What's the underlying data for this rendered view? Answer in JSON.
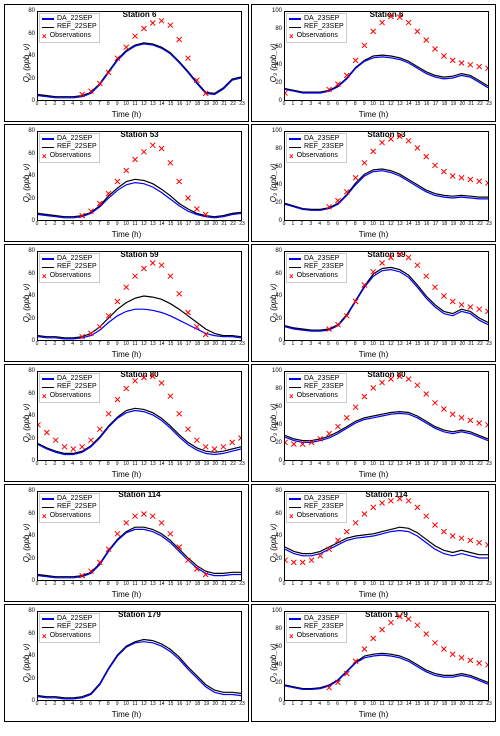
{
  "global": {
    "xlabel": "Time (h)",
    "ylabel": "O₃ (ppb_v)",
    "x": [
      0,
      1,
      2,
      3,
      4,
      5,
      6,
      7,
      8,
      9,
      10,
      11,
      12,
      13,
      14,
      15,
      16,
      17,
      18,
      19,
      20,
      21,
      22,
      23
    ],
    "colors": {
      "da": "#0000ff",
      "ref": "#000000",
      "obs": "#ff0000",
      "grid": "#cccccc",
      "bg": "#ffffff"
    },
    "line_width": 1.2,
    "marker": "x",
    "marker_size": 5,
    "font_size": 8
  },
  "panels": [
    {
      "title": "Station 6",
      "da_lbl": "DA_22SEP",
      "ref_lbl": "REF_22SEP",
      "ylim": [
        0,
        80
      ],
      "ystep": 20,
      "da": [
        4,
        3,
        2,
        2,
        2,
        3,
        6,
        14,
        25,
        36,
        44,
        49,
        51,
        50,
        47,
        42,
        34,
        25,
        15,
        6,
        5,
        10,
        18,
        20
      ],
      "ref": [
        5,
        4,
        3,
        3,
        3,
        4,
        7,
        15,
        26,
        37,
        45,
        50,
        52,
        51,
        48,
        43,
        35,
        26,
        16,
        7,
        6,
        11,
        19,
        21
      ],
      "obs": [
        null,
        null,
        null,
        null,
        null,
        5,
        8,
        15,
        25,
        38,
        48,
        58,
        65,
        70,
        72,
        68,
        55,
        38,
        18,
        6,
        null,
        null,
        null,
        null
      ]
    },
    {
      "title": "Station 6",
      "da_lbl": "DA_23SEP",
      "ref_lbl": "REF_23SEP",
      "ylim": [
        0,
        100
      ],
      "ystep": 20,
      "da": [
        12,
        10,
        8,
        8,
        8,
        10,
        15,
        24,
        36,
        44,
        48,
        49,
        48,
        46,
        42,
        36,
        30,
        26,
        24,
        25,
        28,
        26,
        20,
        14
      ],
      "ref": [
        13,
        11,
        9,
        9,
        9,
        11,
        16,
        25,
        37,
        45,
        50,
        51,
        50,
        48,
        44,
        38,
        32,
        28,
        26,
        27,
        30,
        28,
        22,
        16
      ],
      "obs": [
        8,
        null,
        null,
        null,
        null,
        12,
        18,
        28,
        45,
        62,
        78,
        88,
        95,
        94,
        88,
        78,
        68,
        58,
        50,
        45,
        42,
        40,
        38,
        36
      ]
    },
    {
      "title": "Station 53",
      "da_lbl": "DA_22SEP",
      "ref_lbl": "REF_22SEP",
      "ylim": [
        0,
        80
      ],
      "ystep": 20,
      "da": [
        5,
        4,
        3,
        2,
        2,
        3,
        6,
        12,
        20,
        27,
        32,
        34,
        33,
        30,
        25,
        19,
        13,
        8,
        5,
        3,
        2,
        3,
        5,
        6
      ],
      "ref": [
        6,
        5,
        4,
        3,
        3,
        4,
        7,
        13,
        22,
        29,
        35,
        37,
        36,
        33,
        28,
        22,
        15,
        10,
        6,
        4,
        3,
        4,
        6,
        7
      ],
      "obs": [
        null,
        null,
        null,
        null,
        null,
        4,
        8,
        15,
        24,
        35,
        45,
        55,
        62,
        68,
        65,
        52,
        35,
        20,
        10,
        5,
        null,
        null,
        null,
        null
      ]
    },
    {
      "title": "Station 53",
      "da_lbl": "DA_23SEP",
      "ref_lbl": "REF_23SEP",
      "ylim": [
        0,
        100
      ],
      "ystep": 20,
      "da": [
        18,
        15,
        12,
        11,
        11,
        13,
        18,
        28,
        40,
        50,
        55,
        56,
        54,
        50,
        44,
        38,
        32,
        28,
        26,
        25,
        26,
        25,
        24,
        24
      ],
      "ref": [
        19,
        16,
        13,
        12,
        12,
        14,
        19,
        29,
        42,
        52,
        57,
        58,
        56,
        52,
        46,
        40,
        34,
        30,
        28,
        27,
        28,
        27,
        26,
        26
      ],
      "obs": [
        null,
        null,
        null,
        null,
        null,
        15,
        22,
        32,
        48,
        65,
        78,
        88,
        92,
        95,
        90,
        82,
        72,
        62,
        55,
        50,
        48,
        46,
        44,
        42
      ]
    },
    {
      "title": "Station 59",
      "da_lbl": "DA_22SEP",
      "ref_lbl": "REF_22SEP",
      "ylim": [
        0,
        80
      ],
      "ystep": 20,
      "da": [
        3,
        2,
        2,
        1,
        1,
        2,
        4,
        9,
        16,
        22,
        26,
        28,
        28,
        27,
        25,
        22,
        18,
        14,
        10,
        6,
        4,
        3,
        3,
        2
      ],
      "ref": [
        4,
        3,
        3,
        2,
        2,
        3,
        6,
        12,
        20,
        28,
        34,
        38,
        40,
        39,
        37,
        33,
        28,
        22,
        16,
        10,
        6,
        4,
        4,
        3
      ],
      "obs": [
        null,
        null,
        null,
        null,
        null,
        3,
        6,
        12,
        22,
        35,
        48,
        58,
        65,
        70,
        68,
        58,
        42,
        25,
        12,
        5,
        null,
        null,
        null,
        null
      ]
    },
    {
      "title": "Station 59",
      "da_lbl": "DA_23SEP",
      "ref_lbl": "REF_23SEP",
      "ylim": [
        0,
        80
      ],
      "ystep": 20,
      "da": [
        12,
        10,
        9,
        8,
        8,
        9,
        13,
        22,
        35,
        48,
        58,
        63,
        64,
        62,
        57,
        48,
        38,
        30,
        24,
        22,
        26,
        24,
        18,
        14
      ],
      "ref": [
        13,
        11,
        10,
        9,
        9,
        10,
        14,
        23,
        36,
        49,
        60,
        65,
        66,
        64,
        59,
        50,
        40,
        32,
        26,
        24,
        28,
        26,
        20,
        16
      ],
      "obs": [
        null,
        null,
        null,
        null,
        null,
        10,
        14,
        22,
        35,
        50,
        62,
        70,
        75,
        78,
        75,
        68,
        58,
        48,
        40,
        35,
        32,
        30,
        28,
        26
      ]
    },
    {
      "title": "Station 80",
      "da_lbl": "DA_22SEP",
      "ref_lbl": "REF_22SEP",
      "ylim": [
        0,
        80
      ],
      "ystep": 20,
      "da": [
        14,
        10,
        7,
        5,
        5,
        7,
        12,
        20,
        30,
        38,
        43,
        45,
        44,
        41,
        36,
        29,
        21,
        14,
        9,
        6,
        5,
        6,
        8,
        10
      ],
      "ref": [
        15,
        11,
        8,
        6,
        6,
        8,
        13,
        21,
        31,
        39,
        45,
        47,
        46,
        43,
        38,
        31,
        23,
        16,
        11,
        8,
        7,
        8,
        10,
        12
      ],
      "obs": [
        32,
        25,
        18,
        12,
        10,
        12,
        18,
        28,
        42,
        55,
        65,
        72,
        75,
        76,
        70,
        58,
        42,
        28,
        18,
        12,
        10,
        12,
        16,
        20
      ]
    },
    {
      "title": "Station 80",
      "da_lbl": "DA_23SEP",
      "ref_lbl": "REF_23SEP",
      "ylim": [
        0,
        100
      ],
      "ystep": 20,
      "da": [
        26,
        22,
        20,
        20,
        22,
        25,
        30,
        36,
        42,
        46,
        48,
        50,
        52,
        53,
        52,
        48,
        42,
        36,
        32,
        30,
        32,
        30,
        26,
        22
      ],
      "ref": [
        28,
        24,
        22,
        22,
        24,
        27,
        32,
        38,
        44,
        48,
        50,
        52,
        54,
        55,
        54,
        50,
        44,
        38,
        34,
        32,
        34,
        32,
        28,
        24
      ],
      "obs": [
        20,
        18,
        18,
        20,
        24,
        30,
        38,
        48,
        60,
        72,
        82,
        88,
        92,
        95,
        92,
        85,
        75,
        65,
        58,
        52,
        48,
        45,
        42,
        40
      ]
    },
    {
      "title": "Station 114",
      "da_lbl": "DA_22SEP",
      "ref_lbl": "REF_22SEP",
      "ylim": [
        0,
        80
      ],
      "ystep": 20,
      "da": [
        4,
        3,
        2,
        2,
        2,
        3,
        6,
        14,
        26,
        36,
        43,
        46,
        46,
        44,
        40,
        34,
        26,
        18,
        11,
        6,
        4,
        4,
        5,
        5
      ],
      "ref": [
        5,
        4,
        3,
        3,
        3,
        4,
        7,
        15,
        27,
        37,
        44,
        48,
        48,
        46,
        42,
        36,
        28,
        20,
        13,
        8,
        6,
        6,
        7,
        7
      ],
      "obs": [
        null,
        null,
        null,
        null,
        null,
        4,
        8,
        16,
        28,
        42,
        52,
        58,
        60,
        58,
        52,
        42,
        30,
        18,
        10,
        5,
        null,
        null,
        null,
        null
      ]
    },
    {
      "title": "Station 114",
      "da_lbl": "DA_23SEP",
      "ref_lbl": "REF_23SEP",
      "ylim": [
        0,
        80
      ],
      "ystep": 20,
      "da": [
        28,
        24,
        22,
        22,
        24,
        28,
        32,
        36,
        38,
        39,
        40,
        42,
        44,
        45,
        44,
        40,
        34,
        28,
        24,
        22,
        24,
        22,
        20,
        20
      ],
      "ref": [
        30,
        26,
        24,
        24,
        26,
        30,
        34,
        38,
        40,
        41,
        42,
        44,
        46,
        48,
        47,
        43,
        37,
        31,
        27,
        25,
        27,
        25,
        23,
        23
      ],
      "obs": [
        18,
        16,
        16,
        18,
        22,
        28,
        36,
        44,
        52,
        60,
        66,
        70,
        72,
        74,
        72,
        66,
        58,
        50,
        44,
        40,
        38,
        36,
        34,
        32
      ]
    },
    {
      "title": "Station 179",
      "da_lbl": "DA_22SEP",
      "ref_lbl": "REF_22SEP",
      "ylim": [
        0,
        80
      ],
      "ystep": 20,
      "da": [
        3,
        2,
        2,
        1,
        1,
        2,
        5,
        14,
        28,
        40,
        48,
        52,
        53,
        52,
        49,
        44,
        37,
        28,
        20,
        12,
        7,
        5,
        5,
        4
      ],
      "ref": [
        4,
        3,
        3,
        2,
        2,
        3,
        6,
        15,
        29,
        41,
        49,
        53,
        55,
        54,
        51,
        46,
        39,
        30,
        22,
        14,
        9,
        7,
        7,
        6
      ],
      "obs": []
    },
    {
      "title": "Station 179",
      "da_lbl": "DA_23SEP",
      "ref_lbl": "REF_23SEP",
      "ylim": [
        0,
        100
      ],
      "ystep": 20,
      "da": [
        16,
        14,
        12,
        12,
        13,
        16,
        22,
        32,
        42,
        48,
        50,
        51,
        50,
        48,
        44,
        38,
        32,
        28,
        26,
        26,
        28,
        26,
        22,
        18
      ],
      "ref": [
        17,
        15,
        13,
        13,
        14,
        17,
        23,
        33,
        43,
        50,
        52,
        53,
        52,
        50,
        46,
        40,
        34,
        30,
        28,
        28,
        30,
        28,
        24,
        20
      ],
      "obs": [
        null,
        null,
        null,
        null,
        null,
        14,
        20,
        30,
        44,
        58,
        70,
        80,
        88,
        95,
        92,
        85,
        75,
        65,
        58,
        52,
        48,
        45,
        42,
        40
      ]
    }
  ]
}
